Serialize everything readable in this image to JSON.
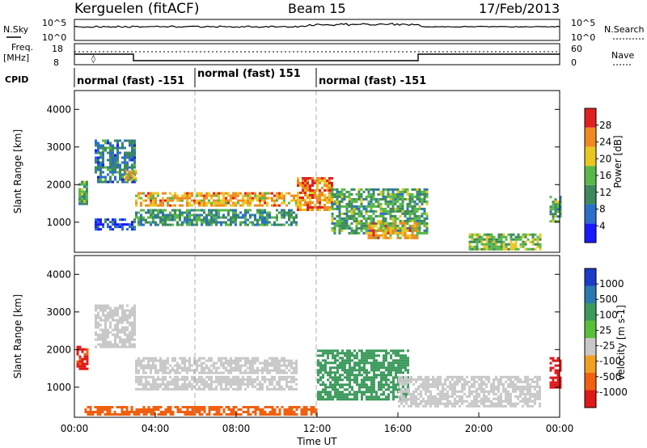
{
  "header": {
    "station": "Kerguelen (fitACF)",
    "beam": "Beam 15",
    "date": "17/Feb/2013"
  },
  "top_panels": {
    "nsky_label": "N.Sky",
    "nsky_ticks": [
      "10^5",
      "10^0"
    ],
    "nsearch_label": "N.Search",
    "nsearch_ticks": [
      "10^5",
      "10^0"
    ],
    "freq_label_line1": "Freq.",
    "freq_label_line2": "[MHz]",
    "freq_ticks": [
      "18",
      "8"
    ],
    "nave_label": "Nave",
    "nave_ticks": [
      "60",
      "0"
    ],
    "cpid_label": "CPID",
    "cpid_segments": [
      {
        "label": "normal (fast) -151",
        "start_hour": 0,
        "end_hour": 6
      },
      {
        "label": "normal (fast) 151",
        "start_hour": 6,
        "end_hour": 12
      },
      {
        "label": "normal (fast) -151",
        "start_hour": 12,
        "end_hour": 24
      }
    ]
  },
  "chart_data": [
    {
      "type": "heatmap",
      "quantity": "Power",
      "ylabel": "Slant Range [km]",
      "xlim_hours": [
        0,
        24
      ],
      "ylim_km": [
        200,
        4500
      ],
      "y_ticks": [
        1000,
        2000,
        3000,
        4000
      ],
      "colorbar": {
        "label": "Power [dB]",
        "ticks": [
          "4",
          "8",
          "12",
          "16",
          "20",
          "24",
          "28"
        ],
        "colors": [
          "#1a1aff",
          "#2a6fc8",
          "#3c8a5c",
          "#58b848",
          "#e8c820",
          "#f08a20",
          "#e02020"
        ]
      },
      "echo_regions": [
        {
          "t0": 0.2,
          "t1": 0.6,
          "r0": 1500,
          "r1": 2100,
          "level": 14
        },
        {
          "t0": 1.0,
          "t1": 3.0,
          "r0": 2100,
          "r1": 3200,
          "level": 10
        },
        {
          "t0": 1.0,
          "t1": 3.0,
          "r0": 800,
          "r1": 1100,
          "level": 6
        },
        {
          "t0": 2.5,
          "t1": 3.0,
          "r0": 2100,
          "r1": 2400,
          "level": 20
        },
        {
          "t0": 3.0,
          "t1": 11.0,
          "r0": 1450,
          "r1": 1800,
          "level": 22
        },
        {
          "t0": 3.0,
          "t1": 11.0,
          "r0": 950,
          "r1": 1350,
          "level": 12
        },
        {
          "t0": 11.0,
          "t1": 12.7,
          "r0": 1300,
          "r1": 2200,
          "level": 24
        },
        {
          "t0": 12.7,
          "t1": 17.5,
          "r0": 700,
          "r1": 1900,
          "level": 14
        },
        {
          "t0": 14.5,
          "t1": 17.0,
          "r0": 600,
          "r1": 1000,
          "level": 22
        },
        {
          "t0": 19.5,
          "t1": 23.0,
          "r0": 300,
          "r1": 700,
          "level": 16
        },
        {
          "t0": 23.5,
          "t1": 24.0,
          "r0": 1000,
          "r1": 1700,
          "level": 14
        }
      ]
    },
    {
      "type": "heatmap",
      "quantity": "Velocity",
      "ylabel": "Slant Range [km]",
      "xlabel": "Time UT",
      "x_ticks": [
        "00:00",
        "04:00",
        "08:00",
        "12:00",
        "16:00",
        "20:00",
        "00:00"
      ],
      "xlim_hours": [
        0,
        24
      ],
      "ylim_km": [
        200,
        4500
      ],
      "y_ticks": [
        1000,
        2000,
        3000,
        4000
      ],
      "colorbar": {
        "label": "Velocity [m s-1]",
        "ticks": [
          "1000",
          "500",
          "100",
          "25",
          "-25",
          "-100",
          "-500",
          "-1000"
        ],
        "colors": [
          "#1a3cc8",
          "#2a7ab0",
          "#3c9a5c",
          "#58c038",
          "#c8c8c8",
          "#f0a020",
          "#f06010",
          "#e01818"
        ]
      },
      "echo_regions": [
        {
          "t0": 0.1,
          "t1": 0.6,
          "r0": 1500,
          "r1": 2100,
          "velocity": -600
        },
        {
          "t0": 1.0,
          "t1": 3.0,
          "r0": 2100,
          "r1": 3200,
          "velocity": 0
        },
        {
          "t0": 3.0,
          "t1": 11.0,
          "r0": 1400,
          "r1": 1800,
          "velocity": 0
        },
        {
          "t0": 3.0,
          "t1": 11.0,
          "r0": 950,
          "r1": 1300,
          "velocity": 0
        },
        {
          "t0": 12.0,
          "t1": 16.5,
          "r0": 700,
          "r1": 2000,
          "velocity": 200
        },
        {
          "t0": 16.0,
          "t1": 23.0,
          "r0": 500,
          "r1": 1300,
          "velocity": 0
        },
        {
          "t0": 0.5,
          "t1": 12.0,
          "r0": 250,
          "r1": 500,
          "velocity": -150
        },
        {
          "t0": 23.5,
          "t1": 24.0,
          "r0": 1000,
          "r1": 1800,
          "velocity": -800
        }
      ]
    }
  ]
}
